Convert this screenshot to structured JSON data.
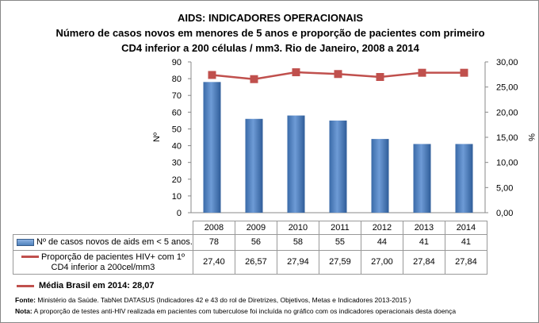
{
  "chart_data": {
    "type": "bar+line",
    "title": "AIDS: INDICADORES OPERACIONAIS",
    "subtitle_lines": [
      "Número de casos novos em menores de 5 anos e proporção de pacientes com primeiro",
      "CD4 inferior a 200 células / mm3. Rio de Janeiro, 2008 a 2014"
    ],
    "categories": [
      "2008",
      "2009",
      "2010",
      "2011",
      "2012",
      "2013",
      "2014"
    ],
    "series": [
      {
        "name": "Nº de casos novos de aids em < 5 anos.",
        "type": "bar",
        "axis": "left",
        "color": "#4F81BD",
        "values": [
          78,
          56,
          58,
          55,
          44,
          41,
          41
        ],
        "labels": [
          "78",
          "56",
          "58",
          "55",
          "44",
          "41",
          "41"
        ]
      },
      {
        "name": "Proporção de pacientes HIV+ com 1º CD4 inferior a 200cel/mm3",
        "type": "line",
        "axis": "right",
        "color": "#C0504D",
        "values": [
          27.4,
          26.57,
          27.94,
          27.59,
          27.0,
          27.84,
          27.84
        ],
        "labels": [
          "27,40",
          "26,57",
          "27,94",
          "27,59",
          "27,00",
          "27,84",
          "27,84"
        ]
      }
    ],
    "ylabel": "Nº",
    "y2label": "%",
    "ylim": [
      0,
      90
    ],
    "y2lim": [
      0,
      30
    ],
    "yticks": [
      "0",
      "10",
      "20",
      "30",
      "40",
      "50",
      "60",
      "70",
      "80",
      "90"
    ],
    "y2ticks": [
      "0,00",
      "5,00",
      "10,00",
      "15,00",
      "20,00",
      "25,00",
      "30,00"
    ],
    "legend": "data-table-below"
  },
  "media": "Média Brasil em 2014: 28,07",
  "fonte_label": "Fonte:",
  "fonte": "Ministério da Saúde. TabNet DATASUS (Indicadores 42 e 43 do rol de Diretrizes, Objetivos, Metas e Indicadores 2013-2015 )",
  "nota_label": "Nota:",
  "nota": "A proporção de testes anti-HIV realizada em pacientes com tuberculose foi incluída no gráfico com os indicadores operacionais desta doença"
}
